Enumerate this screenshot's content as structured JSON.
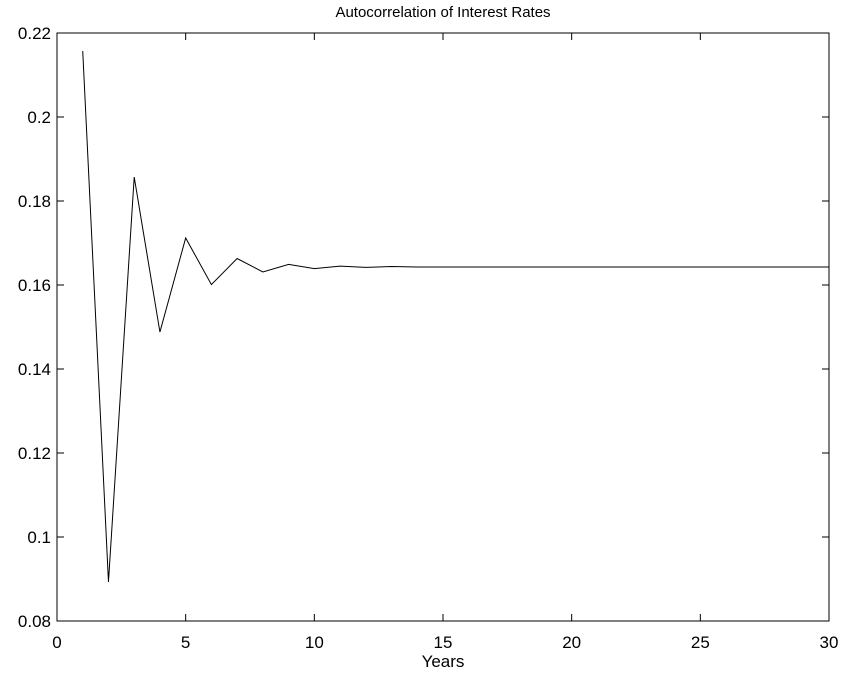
{
  "chart_data": {
    "type": "line",
    "title": "Autocorrelation of Interest Rates",
    "xlabel": "Years",
    "ylabel": "",
    "xlim": [
      0,
      30
    ],
    "ylim": [
      0.08,
      0.22
    ],
    "grid": false,
    "x_ticks": [
      0,
      5,
      10,
      15,
      20,
      25,
      30
    ],
    "x_tick_labels": [
      "0",
      "5",
      "10",
      "15",
      "20",
      "25",
      "30"
    ],
    "y_ticks": [
      0.08,
      0.1,
      0.12,
      0.14,
      0.16,
      0.18,
      0.2,
      0.22
    ],
    "y_tick_labels": [
      "0.08",
      "0.1",
      "0.12",
      "0.14",
      "0.16",
      "0.18",
      "0.2",
      "0.22"
    ],
    "series": [
      {
        "color": "#000000",
        "x": [
          1,
          2,
          3,
          4,
          5,
          6,
          7,
          8,
          9,
          10,
          11,
          12,
          13,
          14,
          15,
          16,
          17,
          18,
          19,
          20,
          21,
          22,
          23,
          24,
          25,
          26,
          27,
          28,
          29,
          30
        ],
        "y": [
          0.2157,
          0.0893,
          0.1857,
          0.1488,
          0.1712,
          0.1601,
          0.1663,
          0.1631,
          0.1649,
          0.1639,
          0.1645,
          0.1642,
          0.1644,
          0.1643,
          0.1643,
          0.1643,
          0.1643,
          0.1643,
          0.1643,
          0.1643,
          0.1643,
          0.1643,
          0.1643,
          0.1643,
          0.1643,
          0.1643,
          0.1643,
          0.1643,
          0.1643,
          0.1643
        ]
      }
    ]
  }
}
